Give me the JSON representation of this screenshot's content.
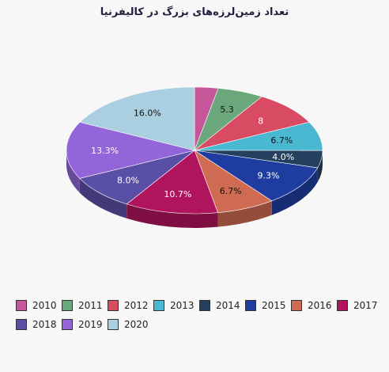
{
  "chart_data": {
    "type": "pie",
    "title": "تعداد زمین‌لرزه‌های بزرگ در کالیفرنیا",
    "categories": [
      "2010",
      "2011",
      "2012",
      "2013",
      "2014",
      "2015",
      "2016",
      "2017",
      "2018",
      "2019",
      "2020"
    ],
    "values": [
      2.7,
      5.3,
      8.0,
      6.7,
      4.0,
      9.3,
      6.7,
      10.7,
      8.0,
      13.3,
      16.0
    ],
    "data_labels": [
      "",
      "5.3",
      "8",
      "6.7%",
      "4.0%",
      "9.3%",
      "6.7%",
      "10.7%",
      "8.0%",
      "13.3%",
      "16.0%"
    ],
    "colors": [
      "#c6559a",
      "#6aa77a",
      "#d94a63",
      "#4bb8d1",
      "#24405e",
      "#1f3da0",
      "#cf6b52",
      "#b0145c",
      "#5a4fa6",
      "#9266d9",
      "#a9cfe1"
    ],
    "legend_position": "bottom",
    "style": "3d"
  }
}
